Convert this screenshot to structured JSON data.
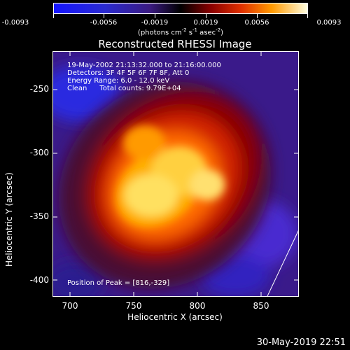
{
  "colorbar": {
    "tick_labels": [
      "-0.0093",
      "-0.0056",
      "-0.0019",
      "0.0019",
      "0.0056",
      "0.0093"
    ],
    "units_base": "(photons cm",
    "units_exp1": "-2",
    "units_mid": " s",
    "units_exp2": "-1",
    "units_mid2": " asec",
    "units_exp3": "-2",
    "units_end": ")"
  },
  "title": "Reconstructed RHESSI Image",
  "annotations": {
    "line1": "19-May-2002 21:13:32.000 to 21:16:00.000",
    "line2": "Detectors: 3F 4F 5F 6F 7F 8F, Att 0",
    "line3": "Energy Range: 6.0 - 12.0 keV",
    "line4_a": "Clean",
    "line4_b": "Total counts: 9.79E+04",
    "peak": "Position of Peak = [816,-329]"
  },
  "axes": {
    "xlabel": "Heliocentric X (arcsec)",
    "ylabel": "Heliocentric Y (arcsec)",
    "xticks": [
      "700",
      "750",
      "800",
      "850"
    ],
    "yticks": [
      "-250",
      "-300",
      "-350",
      "-400"
    ]
  },
  "timestamp": "30-May-2019 22:51"
}
